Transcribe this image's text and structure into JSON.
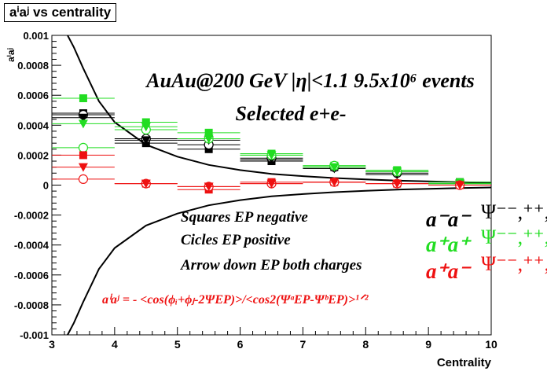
{
  "chart_data": {
    "type": "scatter",
    "title": "aⁱaʲ vs centrality",
    "xlabel": "Centrality",
    "ylabel": "aⁱaʲ",
    "xlim": [
      3,
      10
    ],
    "ylim": [
      -0.001,
      0.001
    ],
    "x_ticks": [
      "3",
      "4",
      "5",
      "6",
      "7",
      "8",
      "9",
      "10"
    ],
    "y_ticks": [
      "-0.001",
      "-0.0008",
      "-0.0006",
      "-0.0004",
      "-0.0002",
      "0",
      "0.0002",
      "0.0004",
      "0.0006",
      "0.0008",
      "0.001"
    ],
    "x": [
      3.5,
      4.5,
      5.5,
      6.5,
      7.5,
      8.5,
      9.5
    ],
    "bin_half_width": 0.5,
    "colors": {
      "minus_minus": "#000000",
      "plus_plus": "#22dd22",
      "plus_minus": "#ee1111"
    },
    "series": [
      {
        "charge": "a-a-",
        "color": "#000000",
        "marker": "square",
        "values": [
          0.00048,
          0.00028,
          0.00024,
          0.00016,
          0.00012,
          9e-05,
          2e-05
        ]
      },
      {
        "charge": "a-a-",
        "color": "#000000",
        "marker": "circle-open",
        "values": [
          0.00047,
          0.00031,
          0.00027,
          0.00018,
          0.00012,
          8e-05,
          1e-05
        ]
      },
      {
        "charge": "a-a-",
        "color": "#000000",
        "marker": "triangle-down",
        "values": [
          0.00045,
          0.0003,
          0.0003,
          0.00017,
          0.00011,
          7e-05,
          1e-05
        ]
      },
      {
        "charge": "a+a+",
        "color": "#22dd22",
        "marker": "square",
        "values": [
          0.00058,
          0.00042,
          0.00035,
          0.00021,
          0.00013,
          0.0001,
          2e-05
        ]
      },
      {
        "charge": "a+a+",
        "color": "#22dd22",
        "marker": "circle-open",
        "values": [
          0.00025,
          0.00037,
          0.00031,
          0.0002,
          0.00013,
          9e-05,
          1e-05
        ]
      },
      {
        "charge": "a+a+",
        "color": "#22dd22",
        "marker": "triangle-down",
        "values": [
          0.00041,
          0.00039,
          0.00031,
          0.0002,
          0.00012,
          9e-05,
          1e-05
        ]
      },
      {
        "charge": "a+a-",
        "color": "#ee1111",
        "marker": "square",
        "values": [
          0.0002,
          1e-05,
          -3e-05,
          2e-05,
          2e-05,
          1e-05,
          0.0
        ]
      },
      {
        "charge": "a+a-",
        "color": "#ee1111",
        "marker": "circle-open",
        "values": [
          4e-05,
          1e-05,
          -1e-05,
          1e-05,
          2e-05,
          1e-05,
          0.0
        ]
      },
      {
        "charge": "a+a-",
        "color": "#ee1111",
        "marker": "triangle-down",
        "values": [
          0.00012,
          1e-05,
          -1e-05,
          1e-05,
          2e-05,
          1e-05,
          0.0
        ]
      }
    ],
    "annotations": {
      "dataset": "AuAu@200 GeV |η|<1.1 9.5x10⁶ events",
      "selection": "Selected e+e-",
      "legend_squares": "Squares EP negative",
      "legend_circles": "Cicles EP positive",
      "legend_arrows": "Arrow down EP both charges",
      "formula": "aⁱaʲ = - <cos(ϕᵢ+ϕⱼ-2ΨEP)>/<cos2(ΨᵃEP-ΨᵇEP)>¹ᐟ²",
      "label_mm": "a⁻a⁻",
      "label_pp": "a⁺a⁺",
      "label_pm": "a⁺a⁻",
      "psi_mm": "Ψ⁻⁻,⁺⁺,⁺⁻",
      "psi_pp": "Ψ⁻⁻,⁺⁺,⁺",
      "psi_pm": "Ψ⁻⁻,⁺⁺,⁺⁻"
    },
    "envelope": {
      "description_free": true,
      "x": [
        3.25,
        3.35,
        3.5,
        3.75,
        4.0,
        4.5,
        5.0,
        5.5,
        6.0,
        6.5,
        7.0,
        7.5,
        8.0,
        8.5,
        9.0,
        9.5,
        10.0
      ],
      "upper": [
        0.001,
        0.00092,
        0.00078,
        0.00056,
        0.00042,
        0.00027,
        0.00019,
        0.000135,
        0.0001,
        7.5e-05,
        6e-05,
        4.7e-05,
        3.8e-05,
        3e-05,
        2.5e-05,
        2e-05,
        1.6e-05
      ]
    },
    "grid": false,
    "legend": "none"
  }
}
